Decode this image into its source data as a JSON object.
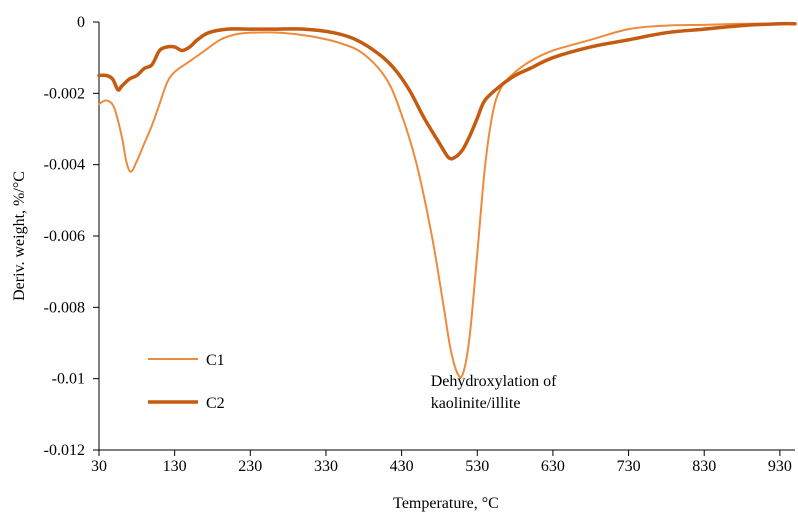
{
  "chart_data": {
    "type": "line",
    "xlabel": "Temperature, °C",
    "ylabel": "Deriv. weight, %/°C",
    "xlim": [
      30,
      950
    ],
    "ylim": [
      -0.012,
      0
    ],
    "xticks": [
      30,
      130,
      230,
      330,
      430,
      530,
      630,
      730,
      830,
      930
    ],
    "yticks": [
      0,
      -0.002,
      -0.004,
      -0.006,
      -0.008,
      -0.01,
      -0.012
    ],
    "ytick_labels": [
      "0",
      "-0.002",
      "-0.004",
      "-0.006",
      "-0.008",
      "-0.01",
      "-0.012"
    ],
    "grid": false,
    "legend_position": "bottom-left",
    "annotation": {
      "lines": [
        "Dehydroxylation of",
        "kaolinite/illite"
      ],
      "x": 520,
      "y": -0.0102
    },
    "series": [
      {
        "name": "C1",
        "color": "#ED8B3D",
        "line_width": 2,
        "points": [
          [
            30,
            -0.0023
          ],
          [
            40,
            -0.0022
          ],
          [
            50,
            -0.0024
          ],
          [
            60,
            -0.0032
          ],
          [
            66,
            -0.0039
          ],
          [
            72,
            -0.0042
          ],
          [
            80,
            -0.0039
          ],
          [
            90,
            -0.0034
          ],
          [
            100,
            -0.0029
          ],
          [
            110,
            -0.0023
          ],
          [
            120,
            -0.0017
          ],
          [
            130,
            -0.0014
          ],
          [
            150,
            -0.0011
          ],
          [
            170,
            -0.0008
          ],
          [
            190,
            -0.0005
          ],
          [
            210,
            -0.00035
          ],
          [
            230,
            -0.0003
          ],
          [
            270,
            -0.0003
          ],
          [
            310,
            -0.0004
          ],
          [
            350,
            -0.0006
          ],
          [
            380,
            -0.0009
          ],
          [
            410,
            -0.0016
          ],
          [
            430,
            -0.0026
          ],
          [
            450,
            -0.004
          ],
          [
            470,
            -0.006
          ],
          [
            485,
            -0.0079
          ],
          [
            495,
            -0.0092
          ],
          [
            505,
            -0.0099
          ],
          [
            512,
            -0.0098
          ],
          [
            520,
            -0.0088
          ],
          [
            530,
            -0.0065
          ],
          [
            540,
            -0.0041
          ],
          [
            550,
            -0.0026
          ],
          [
            560,
            -0.0019
          ],
          [
            575,
            -0.0015
          ],
          [
            600,
            -0.0011
          ],
          [
            630,
            -0.0008
          ],
          [
            680,
            -0.0005
          ],
          [
            730,
            -0.0002
          ],
          [
            780,
            -0.0001
          ],
          [
            830,
            -8e-05
          ],
          [
            880,
            -5e-05
          ],
          [
            930,
            -5e-05
          ],
          [
            950,
            -5e-05
          ]
        ]
      },
      {
        "name": "C2",
        "color": "#C55A11",
        "line_width": 3.5,
        "points": [
          [
            30,
            -0.0015
          ],
          [
            40,
            -0.0015
          ],
          [
            48,
            -0.0016
          ],
          [
            55,
            -0.0019
          ],
          [
            60,
            -0.0018
          ],
          [
            70,
            -0.0016
          ],
          [
            80,
            -0.0015
          ],
          [
            90,
            -0.0013
          ],
          [
            100,
            -0.0012
          ],
          [
            110,
            -0.0008
          ],
          [
            120,
            -0.0007
          ],
          [
            130,
            -0.0007
          ],
          [
            140,
            -0.0008
          ],
          [
            150,
            -0.0007
          ],
          [
            160,
            -0.0005
          ],
          [
            175,
            -0.0003
          ],
          [
            200,
            -0.0002
          ],
          [
            230,
            -0.0002
          ],
          [
            260,
            -0.0002
          ],
          [
            300,
            -0.0002
          ],
          [
            340,
            -0.0003
          ],
          [
            370,
            -0.0005
          ],
          [
            400,
            -0.0009
          ],
          [
            420,
            -0.0013
          ],
          [
            440,
            -0.0019
          ],
          [
            460,
            -0.0027
          ],
          [
            480,
            -0.0034
          ],
          [
            492,
            -0.0038
          ],
          [
            500,
            -0.0038
          ],
          [
            510,
            -0.0036
          ],
          [
            520,
            -0.0032
          ],
          [
            530,
            -0.0027
          ],
          [
            540,
            -0.0022
          ],
          [
            560,
            -0.0018
          ],
          [
            580,
            -0.0015
          ],
          [
            600,
            -0.0013
          ],
          [
            630,
            -0.001
          ],
          [
            680,
            -0.0007
          ],
          [
            730,
            -0.0005
          ],
          [
            780,
            -0.0003
          ],
          [
            830,
            -0.0002
          ],
          [
            880,
            -0.0001
          ],
          [
            930,
            -5e-05
          ],
          [
            950,
            -5e-05
          ]
        ]
      }
    ]
  }
}
